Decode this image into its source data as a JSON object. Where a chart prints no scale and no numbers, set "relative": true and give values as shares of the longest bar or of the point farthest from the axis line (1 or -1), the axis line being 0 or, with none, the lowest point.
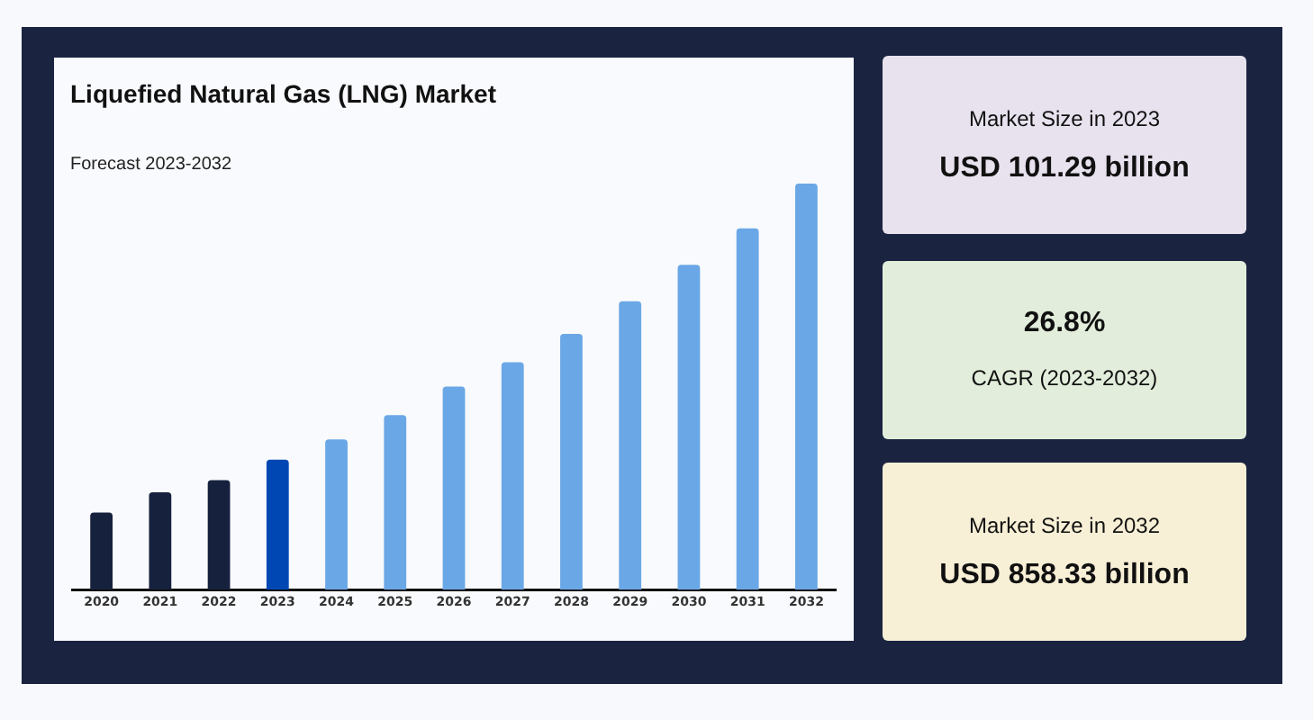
{
  "chart_data": [
    {
      "type": "bar",
      "title": "Liquefied Natural Gas (LNG) Market",
      "subtitle": "Forecast 2023-2032",
      "relative": true,
      "grid": false,
      "legend": false,
      "categories": [
        "2020",
        "2021",
        "2022",
        "2023",
        "2024",
        "2025",
        "2026",
        "2027",
        "2028",
        "2029",
        "2030",
        "2031",
        "2032"
      ],
      "values": [
        0.19,
        0.24,
        0.27,
        0.32,
        0.37,
        0.43,
        0.5,
        0.56,
        0.63,
        0.71,
        0.8,
        0.89,
        1
      ],
      "colors": [
        "#16213e",
        "#16213e",
        "#16213e",
        "#0047b3",
        "#6aa7e6",
        "#6aa7e6",
        "#6aa7e6",
        "#6aa7e6",
        "#6aa7e6",
        "#6aa7e6",
        "#6aa7e6",
        "#6aa7e6",
        "#6aa7e6"
      ]
    },
    {
      "type": "other",
      "subtitle": "Market Size in 2023",
      "title": "USD 101.29 billion"
    },
    {
      "type": "other",
      "title": "26.8%",
      "annotations": [
        "CAGR (2023-2032)"
      ]
    },
    {
      "type": "other",
      "subtitle": "Market Size in 2032",
      "title": "USD 858.33 billion"
    }
  ]
}
